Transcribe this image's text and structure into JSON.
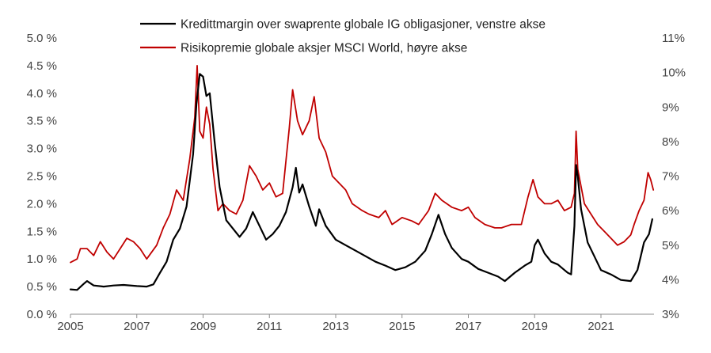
{
  "chart_data": {
    "type": "line",
    "grid": false,
    "legend_placement": "top-center",
    "x_range": [
      2005,
      2022.6
    ],
    "x_ticks": [
      "2005",
      "2007",
      "2009",
      "2011",
      "2013",
      "2015",
      "2017",
      "2019",
      "2021"
    ],
    "y_left": {
      "range": [
        0,
        5.0
      ],
      "ticks": [
        "0.0 %",
        "0.5 %",
        "1.0 %",
        "1.5 %",
        "2.0 %",
        "2.5 %",
        "3.0 %",
        "3.5 %",
        "4.0 %",
        "4.5 %",
        "5.0 %"
      ]
    },
    "y_right": {
      "range": [
        3,
        11
      ],
      "ticks": [
        "3%",
        "4%",
        "5%",
        "6%",
        "7%",
        "8%",
        "9%",
        "10%",
        "11%"
      ]
    },
    "series": [
      {
        "name": "Kredittmargin over swaprente globale IG obligasjoner, venstre akse",
        "axis": "left",
        "color": "#000000",
        "points": [
          [
            2005.0,
            0.45
          ],
          [
            2005.2,
            0.44
          ],
          [
            2005.4,
            0.55
          ],
          [
            2005.5,
            0.6
          ],
          [
            2005.7,
            0.52
          ],
          [
            2006.0,
            0.5
          ],
          [
            2006.3,
            0.52
          ],
          [
            2006.6,
            0.53
          ],
          [
            2007.0,
            0.51
          ],
          [
            2007.3,
            0.5
          ],
          [
            2007.5,
            0.54
          ],
          [
            2007.7,
            0.75
          ],
          [
            2007.9,
            0.95
          ],
          [
            2008.1,
            1.35
          ],
          [
            2008.3,
            1.55
          ],
          [
            2008.5,
            1.95
          ],
          [
            2008.7,
            2.9
          ],
          [
            2008.8,
            3.8
          ],
          [
            2008.9,
            4.35
          ],
          [
            2009.0,
            4.3
          ],
          [
            2009.1,
            3.95
          ],
          [
            2009.2,
            4.0
          ],
          [
            2009.35,
            3.1
          ],
          [
            2009.5,
            2.3
          ],
          [
            2009.7,
            1.7
          ],
          [
            2009.9,
            1.55
          ],
          [
            2010.1,
            1.4
          ],
          [
            2010.3,
            1.55
          ],
          [
            2010.5,
            1.85
          ],
          [
            2010.7,
            1.6
          ],
          [
            2010.9,
            1.35
          ],
          [
            2011.1,
            1.45
          ],
          [
            2011.3,
            1.6
          ],
          [
            2011.5,
            1.85
          ],
          [
            2011.7,
            2.3
          ],
          [
            2011.8,
            2.65
          ],
          [
            2011.9,
            2.2
          ],
          [
            2012.0,
            2.35
          ],
          [
            2012.2,
            1.95
          ],
          [
            2012.4,
            1.6
          ],
          [
            2012.5,
            1.9
          ],
          [
            2012.7,
            1.6
          ],
          [
            2013.0,
            1.35
          ],
          [
            2013.3,
            1.25
          ],
          [
            2013.6,
            1.15
          ],
          [
            2013.9,
            1.05
          ],
          [
            2014.2,
            0.95
          ],
          [
            2014.5,
            0.88
          ],
          [
            2014.8,
            0.8
          ],
          [
            2015.1,
            0.85
          ],
          [
            2015.4,
            0.95
          ],
          [
            2015.7,
            1.15
          ],
          [
            2015.9,
            1.45
          ],
          [
            2016.1,
            1.8
          ],
          [
            2016.3,
            1.45
          ],
          [
            2016.5,
            1.2
          ],
          [
            2016.8,
            1.0
          ],
          [
            2017.0,
            0.95
          ],
          [
            2017.3,
            0.82
          ],
          [
            2017.6,
            0.75
          ],
          [
            2017.9,
            0.68
          ],
          [
            2018.1,
            0.6
          ],
          [
            2018.4,
            0.75
          ],
          [
            2018.7,
            0.88
          ],
          [
            2018.9,
            0.95
          ],
          [
            2019.0,
            1.25
          ],
          [
            2019.1,
            1.35
          ],
          [
            2019.3,
            1.1
          ],
          [
            2019.5,
            0.95
          ],
          [
            2019.7,
            0.9
          ],
          [
            2019.9,
            0.8
          ],
          [
            2020.0,
            0.75
          ],
          [
            2020.1,
            0.72
          ],
          [
            2020.2,
            1.6
          ],
          [
            2020.25,
            2.7
          ],
          [
            2020.3,
            2.5
          ],
          [
            2020.4,
            1.9
          ],
          [
            2020.6,
            1.3
          ],
          [
            2020.8,
            1.05
          ],
          [
            2021.0,
            0.8
          ],
          [
            2021.3,
            0.72
          ],
          [
            2021.6,
            0.62
          ],
          [
            2021.9,
            0.6
          ],
          [
            2022.1,
            0.8
          ],
          [
            2022.2,
            1.05
          ],
          [
            2022.3,
            1.3
          ],
          [
            2022.45,
            1.45
          ],
          [
            2022.55,
            1.72
          ]
        ]
      },
      {
        "name": "Risikopremie globale aksjer MSCI World, høyre akse",
        "axis": "right",
        "color": "#C00000",
        "points": [
          [
            2005.0,
            4.5
          ],
          [
            2005.2,
            4.6
          ],
          [
            2005.3,
            4.9
          ],
          [
            2005.5,
            4.9
          ],
          [
            2005.7,
            4.7
          ],
          [
            2005.9,
            5.1
          ],
          [
            2006.1,
            4.8
          ],
          [
            2006.3,
            4.6
          ],
          [
            2006.5,
            4.9
          ],
          [
            2006.7,
            5.2
          ],
          [
            2006.9,
            5.1
          ],
          [
            2007.1,
            4.9
          ],
          [
            2007.3,
            4.6
          ],
          [
            2007.6,
            5.0
          ],
          [
            2007.8,
            5.5
          ],
          [
            2008.0,
            5.9
          ],
          [
            2008.2,
            6.6
          ],
          [
            2008.4,
            6.3
          ],
          [
            2008.6,
            7.5
          ],
          [
            2008.75,
            8.7
          ],
          [
            2008.82,
            10.2
          ],
          [
            2008.9,
            8.3
          ],
          [
            2009.0,
            8.1
          ],
          [
            2009.1,
            9.0
          ],
          [
            2009.2,
            8.5
          ],
          [
            2009.3,
            7.2
          ],
          [
            2009.45,
            6.0
          ],
          [
            2009.6,
            6.2
          ],
          [
            2009.8,
            6.0
          ],
          [
            2010.0,
            5.9
          ],
          [
            2010.2,
            6.3
          ],
          [
            2010.4,
            7.3
          ],
          [
            2010.6,
            7.0
          ],
          [
            2010.8,
            6.6
          ],
          [
            2011.0,
            6.8
          ],
          [
            2011.2,
            6.4
          ],
          [
            2011.4,
            6.5
          ],
          [
            2011.6,
            8.4
          ],
          [
            2011.7,
            9.5
          ],
          [
            2011.85,
            8.6
          ],
          [
            2012.0,
            8.2
          ],
          [
            2012.2,
            8.6
          ],
          [
            2012.35,
            9.3
          ],
          [
            2012.5,
            8.1
          ],
          [
            2012.7,
            7.7
          ],
          [
            2012.9,
            7.0
          ],
          [
            2013.1,
            6.8
          ],
          [
            2013.3,
            6.6
          ],
          [
            2013.5,
            6.2
          ],
          [
            2013.8,
            6.0
          ],
          [
            2014.0,
            5.9
          ],
          [
            2014.3,
            5.8
          ],
          [
            2014.5,
            6.0
          ],
          [
            2014.7,
            5.6
          ],
          [
            2015.0,
            5.8
          ],
          [
            2015.3,
            5.7
          ],
          [
            2015.5,
            5.6
          ],
          [
            2015.8,
            6.0
          ],
          [
            2016.0,
            6.5
          ],
          [
            2016.2,
            6.3
          ],
          [
            2016.5,
            6.1
          ],
          [
            2016.8,
            6.0
          ],
          [
            2017.0,
            6.1
          ],
          [
            2017.2,
            5.8
          ],
          [
            2017.5,
            5.6
          ],
          [
            2017.8,
            5.5
          ],
          [
            2018.0,
            5.5
          ],
          [
            2018.3,
            5.6
          ],
          [
            2018.6,
            5.6
          ],
          [
            2018.8,
            6.4
          ],
          [
            2018.95,
            6.9
          ],
          [
            2019.1,
            6.4
          ],
          [
            2019.3,
            6.2
          ],
          [
            2019.5,
            6.2
          ],
          [
            2019.7,
            6.3
          ],
          [
            2019.9,
            6.0
          ],
          [
            2020.1,
            6.1
          ],
          [
            2020.2,
            6.5
          ],
          [
            2020.25,
            8.3
          ],
          [
            2020.3,
            7.2
          ],
          [
            2020.5,
            6.2
          ],
          [
            2020.7,
            5.9
          ],
          [
            2020.9,
            5.6
          ],
          [
            2021.1,
            5.4
          ],
          [
            2021.3,
            5.2
          ],
          [
            2021.5,
            5.0
          ],
          [
            2021.7,
            5.1
          ],
          [
            2021.9,
            5.3
          ],
          [
            2022.0,
            5.6
          ],
          [
            2022.15,
            6.0
          ],
          [
            2022.3,
            6.3
          ],
          [
            2022.42,
            7.1
          ],
          [
            2022.5,
            6.9
          ],
          [
            2022.58,
            6.6
          ]
        ]
      }
    ]
  }
}
